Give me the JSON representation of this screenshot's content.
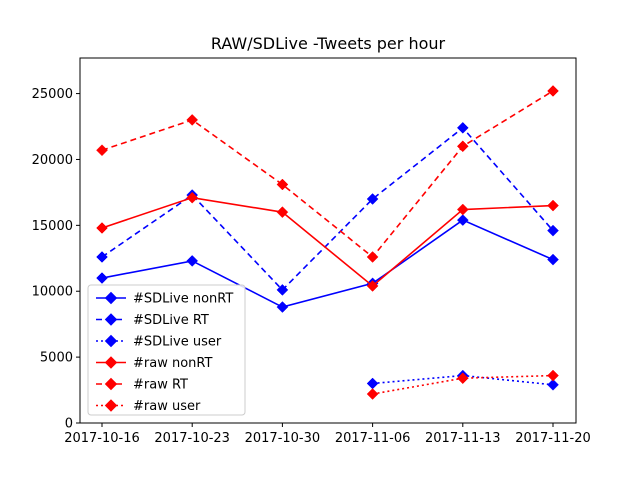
{
  "chart_data": {
    "type": "line",
    "title": "RAW/SDLive -Tweets per hour",
    "xlabel": "",
    "ylabel": "",
    "categories": [
      "2017-10-16",
      "2017-10-23",
      "2017-10-30",
      "2017-11-06",
      "2017-11-13",
      "2017-11-20"
    ],
    "ylim": [
      0,
      27700
    ],
    "yticks": [
      0,
      5000,
      10000,
      15000,
      20000,
      25000
    ],
    "grid": false,
    "legend_position": "lower-left",
    "series": [
      {
        "name": "#SDLive nonRT",
        "color": "#0000ff",
        "linestyle": "solid",
        "values": [
          11000,
          12300,
          8800,
          10600,
          15400,
          12400
        ]
      },
      {
        "name": "#SDLive RT",
        "color": "#0000ff",
        "linestyle": "dashed",
        "values": [
          12600,
          17300,
          10100,
          17000,
          22400,
          14600
        ]
      },
      {
        "name": "#SDLive user",
        "color": "#0000ff",
        "linestyle": "dotted",
        "values": [
          null,
          null,
          null,
          3000,
          3600,
          2900
        ]
      },
      {
        "name": "#raw nonRT",
        "color": "#ff0000",
        "linestyle": "solid",
        "values": [
          14800,
          17100,
          16000,
          10400,
          16200,
          16500
        ]
      },
      {
        "name": "#raw RT",
        "color": "#ff0000",
        "linestyle": "dashed",
        "values": [
          20700,
          23000,
          18100,
          12600,
          21000,
          25200
        ]
      },
      {
        "name": "#raw user",
        "color": "#ff0000",
        "linestyle": "dotted",
        "values": [
          null,
          null,
          null,
          2200,
          3400,
          3600
        ]
      }
    ]
  }
}
